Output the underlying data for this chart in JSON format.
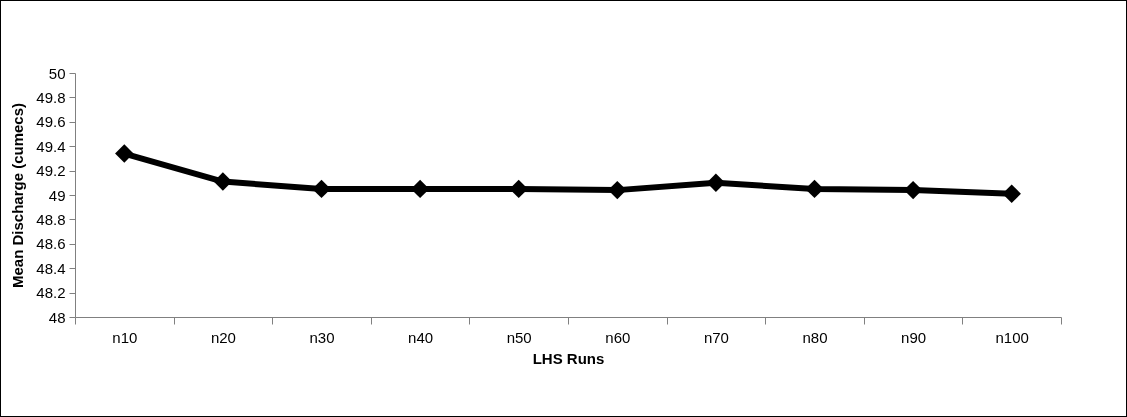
{
  "chart_data": {
    "type": "line",
    "xlabel": "LHS Runs",
    "ylabel": "Mean Discharge (cumecs)",
    "categories": [
      "n10",
      "n20",
      "n30",
      "n40",
      "n50",
      "n60",
      "n70",
      "n80",
      "n90",
      "n100"
    ],
    "series": [
      {
        "color": "#000000",
        "values": [
          49.34,
          49.11,
          49.05,
          49.05,
          49.05,
          49.04,
          49.1,
          49.05,
          49.04,
          49.01
        ]
      }
    ],
    "ylim": [
      48,
      50
    ],
    "yticks": [
      48,
      48.2,
      48.4,
      48.6,
      48.8,
      49,
      49.2,
      49.4,
      49.6,
      49.8,
      50
    ],
    "grid": false,
    "legend": false,
    "marker": "diamond",
    "line_style": "solid"
  }
}
